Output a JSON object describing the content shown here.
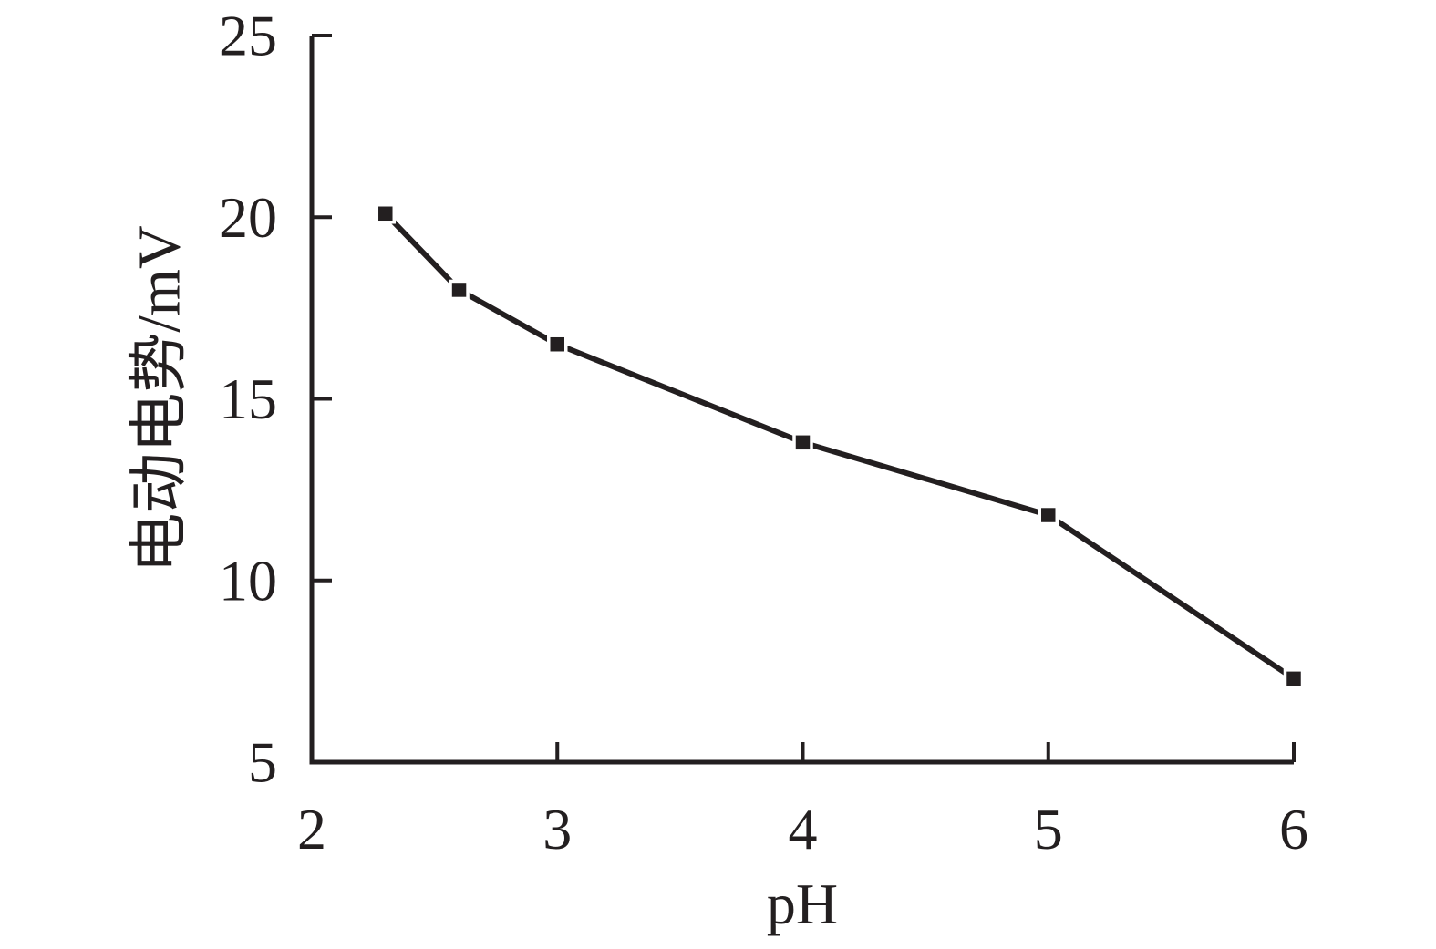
{
  "figure": {
    "background": "#ffffff"
  },
  "chart_data": {
    "type": "line",
    "title": "",
    "xlabel": "pH",
    "ylabel": "电动电势/mV",
    "series": [
      {
        "x": [
          2.3,
          2.6,
          3.0,
          4.0,
          5.0,
          6.0
        ],
        "y": [
          20.1,
          18.0,
          16.5,
          13.8,
          11.8,
          7.3
        ]
      }
    ],
    "xlim": [
      2,
      6
    ],
    "ylim": [
      5,
      25
    ],
    "xticks": [
      2,
      3,
      4,
      5,
      6
    ],
    "yticks": [
      5,
      10,
      15,
      20,
      25
    ],
    "grid": false,
    "legend_position": "none",
    "marker": "filled-square",
    "colors": {
      "line": "#231f20",
      "marker": "#231f20",
      "axis": "#231f20",
      "text": "#231f20",
      "background": "#ffffff"
    }
  }
}
